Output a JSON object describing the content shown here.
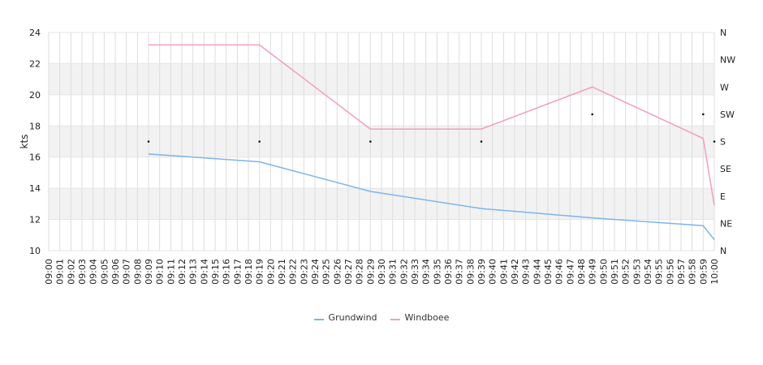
{
  "chart_data": {
    "type": "line",
    "ylabel": "kts",
    "ylim": [
      10,
      24
    ],
    "y_ticks": [
      "10",
      "12",
      "14",
      "16",
      "18",
      "20",
      "22",
      "24"
    ],
    "x_ticks": [
      "09:00",
      "09:01",
      "09:02",
      "09:03",
      "09:04",
      "09:05",
      "09:06",
      "09:07",
      "09:08",
      "09:09",
      "09:10",
      "09:11",
      "09:12",
      "09:13",
      "09:14",
      "09:15",
      "09:16",
      "09:17",
      "09:18",
      "09:19",
      "09:20",
      "09:21",
      "09:22",
      "09:23",
      "09:24",
      "09:25",
      "09:26",
      "09:27",
      "09:28",
      "09:29",
      "09:30",
      "09:31",
      "09:32",
      "09:33",
      "09:34",
      "09:35",
      "09:36",
      "09:37",
      "09:38",
      "09:39",
      "09:40",
      "09:41",
      "09:42",
      "09:43",
      "09:44",
      "09:45",
      "09:46",
      "09:47",
      "09:48",
      "09:49",
      "09:50",
      "09:51",
      "09:52",
      "09:53",
      "09:54",
      "09:55",
      "09:56",
      "09:57",
      "09:58",
      "09:59",
      "10:00"
    ],
    "direction_axis": [
      "N",
      "NE",
      "E",
      "SE",
      "S",
      "SW",
      "W",
      "NW",
      "N"
    ],
    "series": [
      {
        "name": "Grundwind",
        "color": "#7cb5ec",
        "points": [
          [
            "09:09",
            16.2
          ],
          [
            "09:19",
            15.7
          ],
          [
            "09:29",
            13.8
          ],
          [
            "09:39",
            12.7
          ],
          [
            "09:49",
            12.1
          ],
          [
            "09:59",
            11.6
          ],
          [
            "10:00",
            10.7
          ]
        ]
      },
      {
        "name": "Windboee",
        "color": "#f19ec2",
        "points": [
          [
            "09:09",
            23.2
          ],
          [
            "09:19",
            23.2
          ],
          [
            "09:29",
            17.8
          ],
          [
            "09:39",
            17.8
          ],
          [
            "09:49",
            20.5
          ],
          [
            "09:59",
            17.2
          ],
          [
            "10:00",
            12.9
          ]
        ]
      }
    ],
    "direction_points": [
      [
        "09:09",
        "S"
      ],
      [
        "09:19",
        "S"
      ],
      [
        "09:29",
        "S"
      ],
      [
        "09:39",
        "S"
      ],
      [
        "09:49",
        "SW"
      ],
      [
        "09:59",
        "SW"
      ],
      [
        "10:00",
        "S"
      ]
    ],
    "grid": true,
    "legend_position": "bottom-center"
  }
}
